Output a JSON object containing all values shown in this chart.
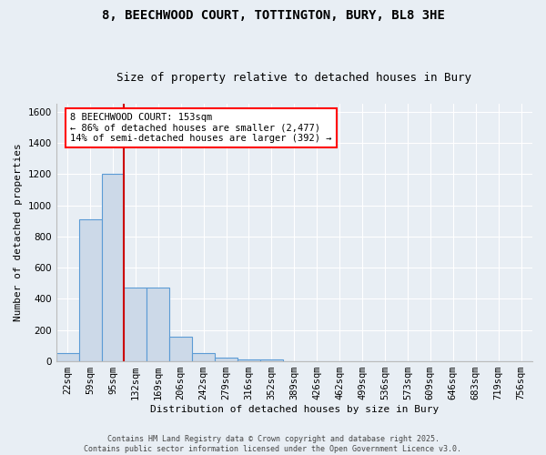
{
  "title": "8, BEECHWOOD COURT, TOTTINGTON, BURY, BL8 3HE",
  "subtitle": "Size of property relative to detached houses in Bury",
  "xlabel": "Distribution of detached houses by size in Bury",
  "ylabel": "Number of detached properties",
  "categories": [
    "22sqm",
    "59sqm",
    "95sqm",
    "132sqm",
    "169sqm",
    "206sqm",
    "242sqm",
    "279sqm",
    "316sqm",
    "352sqm",
    "389sqm",
    "426sqm",
    "462sqm",
    "499sqm",
    "536sqm",
    "573sqm",
    "609sqm",
    "646sqm",
    "683sqm",
    "719sqm",
    "756sqm"
  ],
  "values": [
    55,
    910,
    1200,
    470,
    470,
    155,
    55,
    25,
    10,
    15,
    0,
    0,
    0,
    0,
    0,
    0,
    0,
    0,
    0,
    0,
    0
  ],
  "bar_color": "#ccd9e8",
  "bar_edge_color": "#5b9bd5",
  "background_color": "#e8eef4",
  "grid_color": "#ffffff",
  "ylim": [
    0,
    1650
  ],
  "yticks": [
    0,
    200,
    400,
    600,
    800,
    1000,
    1200,
    1400,
    1600
  ],
  "vline_x": 2.5,
  "vline_color": "#cc0000",
  "annotation_text": "8 BEECHWOOD COURT: 153sqm\n← 86% of detached houses are smaller (2,477)\n14% of semi-detached houses are larger (392) →",
  "footer_line1": "Contains HM Land Registry data © Crown copyright and database right 2025.",
  "footer_line2": "Contains public sector information licensed under the Open Government Licence v3.0.",
  "title_fontsize": 10,
  "subtitle_fontsize": 9,
  "axis_label_fontsize": 8,
  "tick_fontsize": 7.5,
  "annotation_fontsize": 7.5,
  "footer_fontsize": 6
}
